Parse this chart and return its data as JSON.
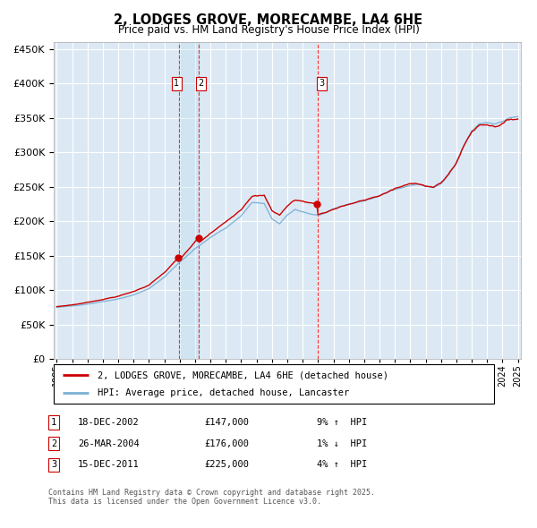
{
  "title": "2, LODGES GROVE, MORECAMBE, LA4 6HE",
  "subtitle": "Price paid vs. HM Land Registry's House Price Index (HPI)",
  "legend_line1": "2, LODGES GROVE, MORECAMBE, LA4 6HE (detached house)",
  "legend_line2": "HPI: Average price, detached house, Lancaster",
  "transactions": [
    {
      "num": 1,
      "date": "18-DEC-2002",
      "price": 147000,
      "pct": "9%",
      "dir": "↑"
    },
    {
      "num": 2,
      "date": "26-MAR-2004",
      "price": 176000,
      "pct": "1%",
      "dir": "↓"
    },
    {
      "num": 3,
      "date": "15-DEC-2011",
      "price": 225000,
      "pct": "4%",
      "dir": "↑"
    }
  ],
  "transaction_dates_decimal": [
    2002.958,
    2004.23,
    2011.958
  ],
  "footnote": "Contains HM Land Registry data © Crown copyright and database right 2025.\nThis data is licensed under the Open Government Licence v3.0.",
  "hpi_color": "#7BAFD4",
  "price_color": "#CC0000",
  "bg_color": "#DCE9F5",
  "grid_color": "#FFFFFF",
  "ylim": [
    0,
    460000
  ],
  "yticks": [
    0,
    50000,
    100000,
    150000,
    200000,
    250000,
    300000,
    350000,
    400000,
    450000
  ],
  "x_start_year": 1995,
  "x_end_year": 2025,
  "anchors_hpi": {
    "1995.0": 75000,
    "1996.0": 77000,
    "1997.0": 80000,
    "1998.0": 84000,
    "1999.0": 88000,
    "2000.0": 94000,
    "2001.0": 103000,
    "2002.0": 120000,
    "2003.0": 142000,
    "2004.0": 162000,
    "2005.0": 178000,
    "2006.0": 192000,
    "2007.0": 210000,
    "2007.7": 230000,
    "2008.5": 228000,
    "2009.0": 205000,
    "2009.5": 198000,
    "2010.0": 210000,
    "2010.5": 218000,
    "2011.0": 215000,
    "2011.5": 212000,
    "2012.0": 210000,
    "2012.5": 213000,
    "2013.0": 218000,
    "2014.0": 225000,
    "2015.0": 230000,
    "2016.0": 237000,
    "2017.0": 247000,
    "2018.0": 253000,
    "2018.5": 255000,
    "2019.0": 252000,
    "2019.5": 250000,
    "2020.0": 255000,
    "2020.5": 268000,
    "2021.0": 285000,
    "2021.5": 310000,
    "2022.0": 330000,
    "2022.5": 340000,
    "2023.0": 342000,
    "2023.5": 340000,
    "2024.0": 345000,
    "2024.5": 350000,
    "2025.0": 352000
  }
}
